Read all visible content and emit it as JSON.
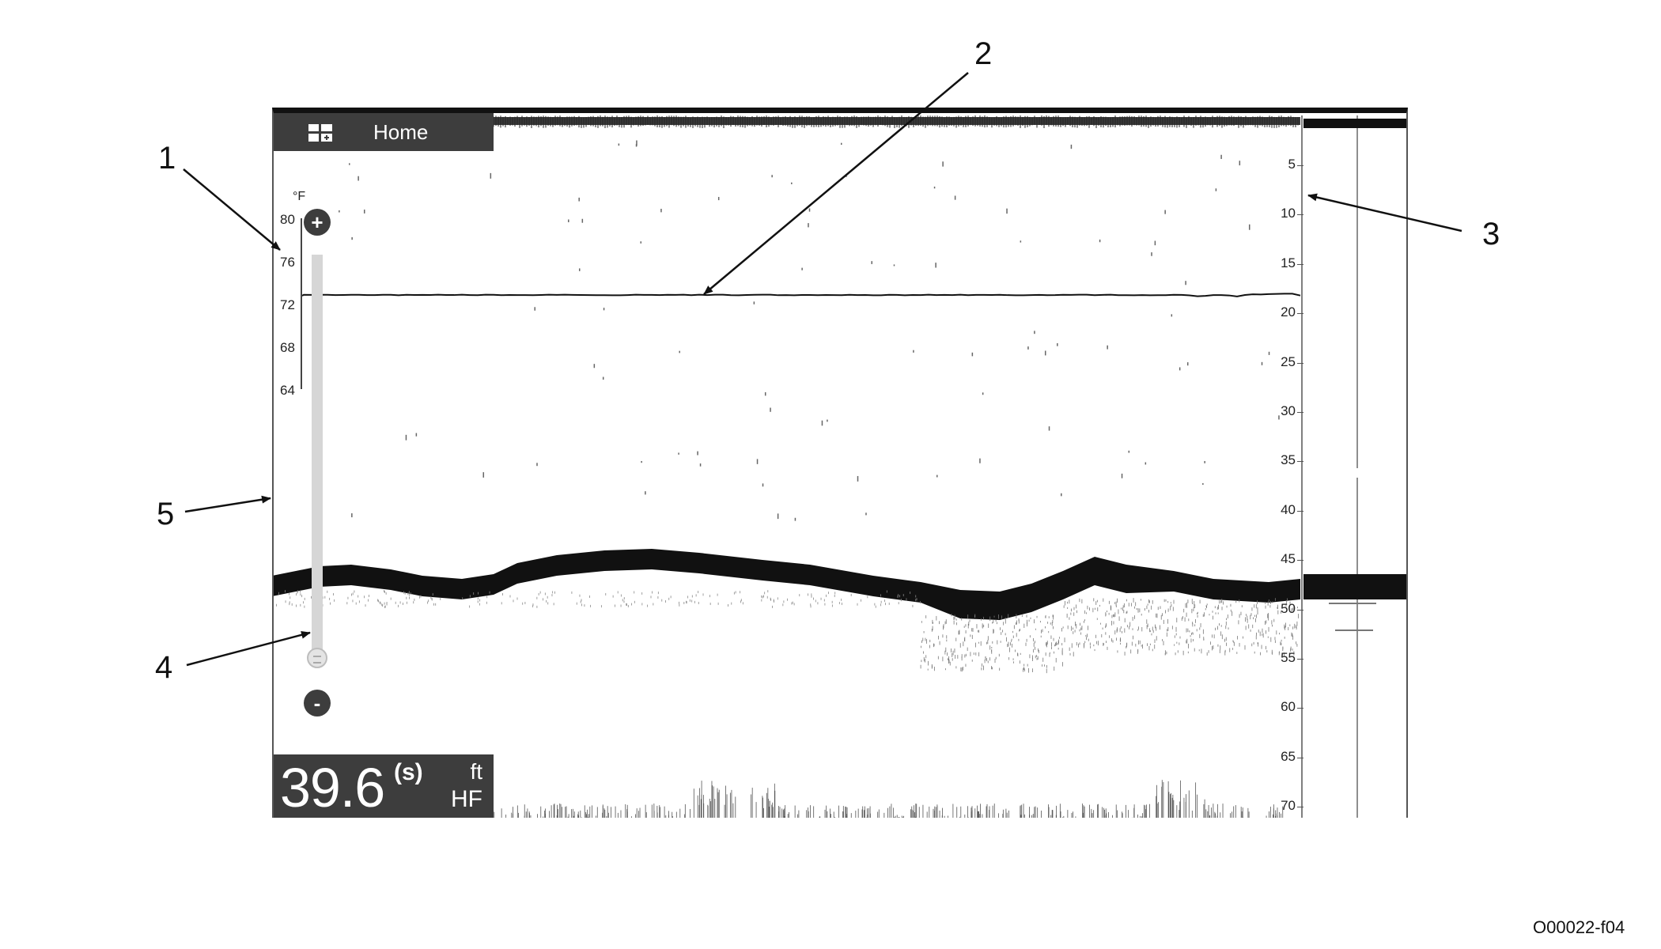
{
  "home_bar": {
    "label": "Home",
    "icon": "layout-grid-icon"
  },
  "temperature_scale": {
    "unit": "°F",
    "ticks": [
      "80",
      "76",
      "72",
      "68",
      "64"
    ]
  },
  "zoom_control": {
    "plus_label": "+",
    "minus_label": "-"
  },
  "depth_readout": {
    "value": "39.6",
    "source": "(s)",
    "unit": "ft",
    "frequency": "HF"
  },
  "depth_scale": {
    "ticks": [
      "5",
      "10",
      "15",
      "20",
      "25",
      "30",
      "35",
      "40",
      "45",
      "50",
      "55",
      "60",
      "65",
      "70"
    ]
  },
  "callouts": [
    "1",
    "2",
    "3",
    "4",
    "5"
  ],
  "figure_id": "O00022-f04",
  "colors": {
    "panel": "#3d3d3d",
    "echo": "#111111",
    "zoom_track": "#d6d6d6"
  }
}
